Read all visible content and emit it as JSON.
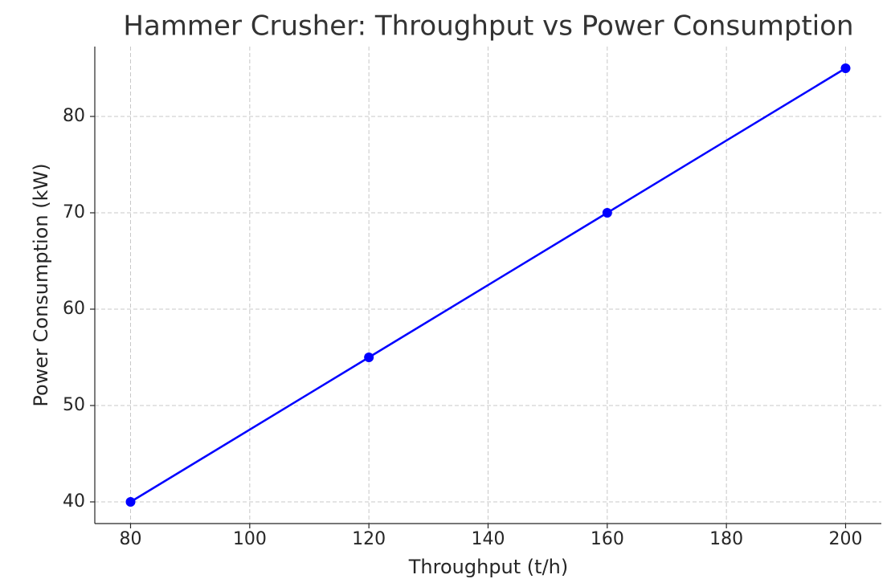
{
  "chart_data": {
    "type": "line",
    "title": "Hammer Crusher: Throughput vs Power Consumption",
    "x_label": "Throughput (t/h)",
    "y_label": "Power Consumption (kW)",
    "x": [
      80,
      120,
      160,
      200
    ],
    "series": [
      {
        "name": "Power Consumption",
        "color": "#0000ff",
        "values": [
          40,
          55,
          70,
          85
        ]
      }
    ],
    "xlim": [
      74,
      206
    ],
    "xticks": [
      80,
      100,
      120,
      140,
      160,
      180,
      200
    ],
    "ylim": [
      37.75,
      87.25
    ],
    "yticks": [
      40,
      50,
      60,
      70,
      80
    ],
    "grid": true,
    "markers": true
  }
}
